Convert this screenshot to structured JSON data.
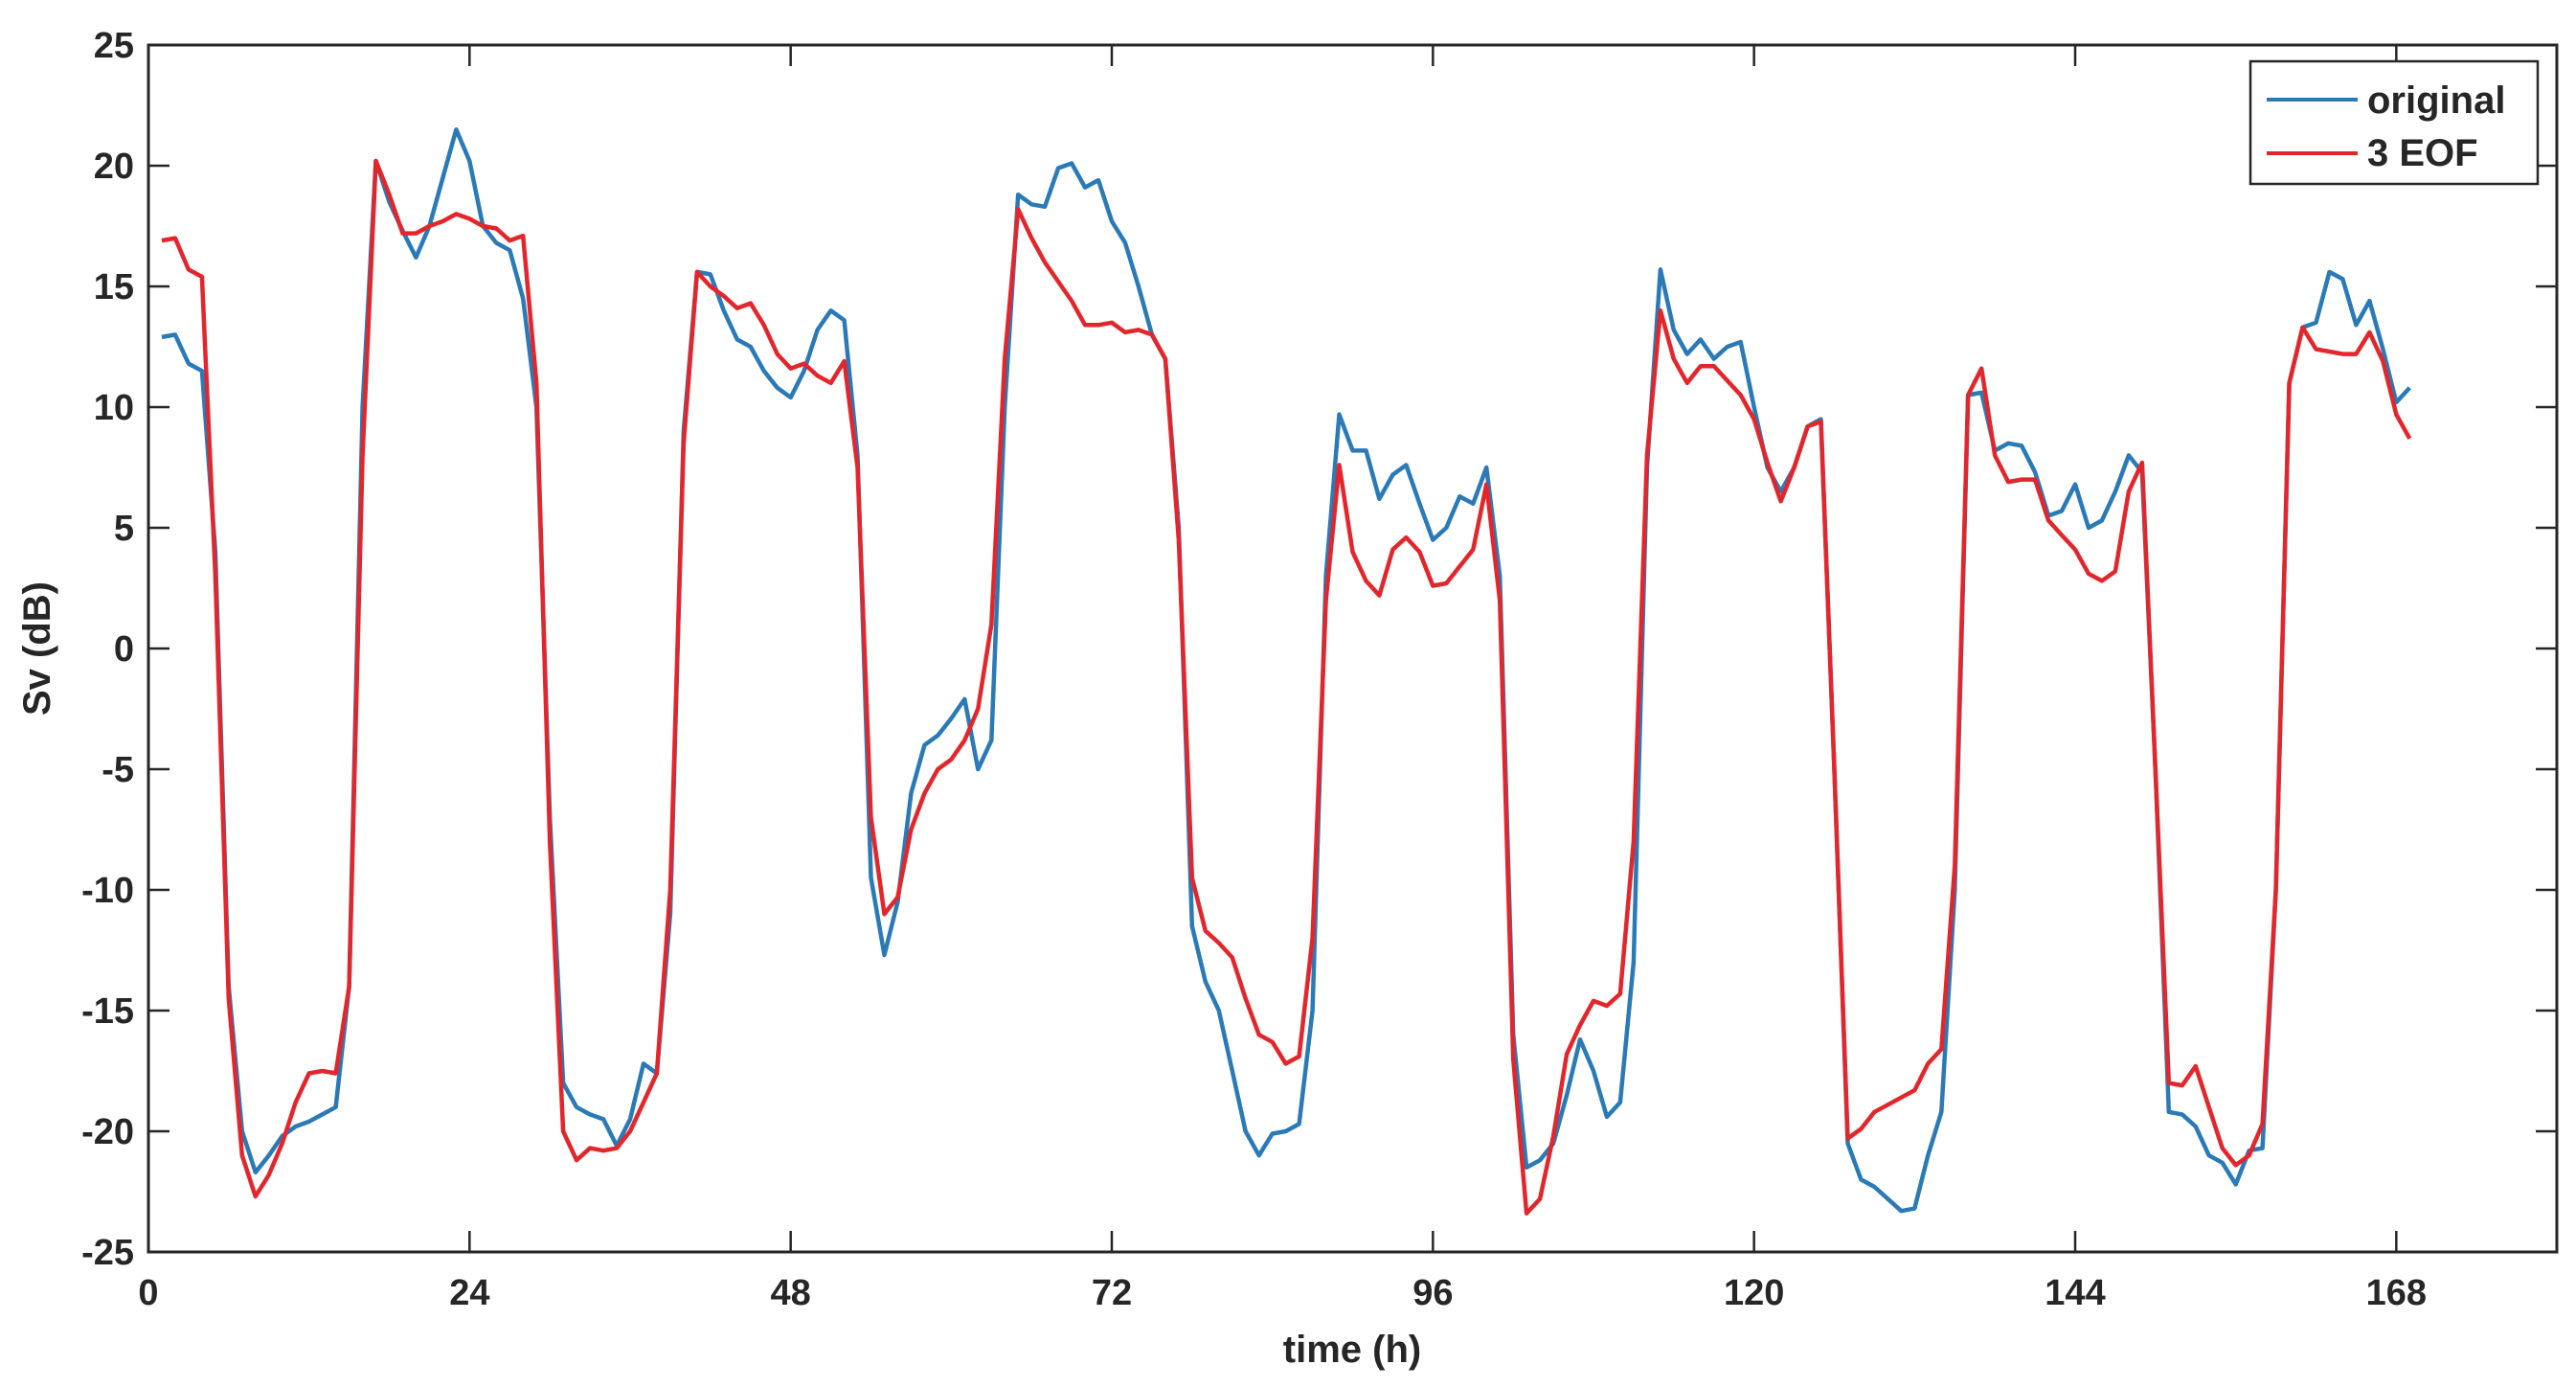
{
  "chart_data": {
    "type": "line",
    "title": "",
    "xlabel": "time (h)",
    "ylabel": "Sv (dB)",
    "xlim": [
      0,
      180
    ],
    "ylim": [
      -25,
      25
    ],
    "xticks": [
      0,
      24,
      48,
      72,
      96,
      120,
      144,
      168
    ],
    "yticks": [
      -25,
      -20,
      -15,
      -10,
      -5,
      0,
      5,
      10,
      15,
      20,
      25
    ],
    "grid": false,
    "legend_position": "top-right",
    "colors": {
      "original": "#2a7ab8",
      "eof": "#e3262c",
      "axis": "#262626"
    },
    "series": [
      {
        "name": "original",
        "x": [
          1,
          2,
          3,
          4,
          5,
          6,
          7,
          8,
          9,
          10,
          11,
          12,
          13,
          14,
          15,
          16,
          17,
          18,
          19,
          20,
          21,
          22,
          23,
          24,
          25,
          26,
          27,
          28,
          29,
          30,
          31,
          32,
          33,
          34,
          35,
          36,
          37,
          38,
          39,
          40,
          41,
          42,
          43,
          44,
          45,
          46,
          47,
          48,
          49,
          50,
          51,
          52,
          53,
          54,
          55,
          56,
          57,
          58,
          59,
          60,
          61,
          62,
          63,
          64,
          65,
          66,
          67,
          68,
          69,
          70,
          71,
          72,
          73,
          74,
          75,
          76,
          77,
          78,
          79,
          80,
          81,
          82,
          83,
          84,
          85,
          86,
          87,
          88,
          89,
          90,
          91,
          92,
          93,
          94,
          95,
          96,
          97,
          98,
          99,
          100,
          101,
          102,
          103,
          104,
          105,
          106,
          107,
          108,
          109,
          110,
          111,
          112,
          113,
          114,
          115,
          116,
          117,
          118,
          119,
          120,
          121,
          122,
          123,
          124,
          125,
          126,
          127,
          128,
          129,
          130,
          131,
          132,
          133,
          134,
          135,
          136,
          137,
          138,
          139,
          140,
          141,
          142,
          143,
          144,
          145,
          146,
          147,
          148,
          149,
          150,
          151,
          152,
          153,
          154,
          155,
          156,
          157,
          158,
          159,
          160,
          161,
          162,
          163,
          164,
          165,
          166,
          167,
          168,
          169
        ],
        "y": [
          12.9,
          13,
          11.8,
          11.5,
          4,
          -14,
          -20,
          -21.7,
          -21,
          -20.2,
          -19.8,
          -19.6,
          -19.3,
          -19,
          -14,
          10,
          20.2,
          18.5,
          17.3,
          16.2,
          17.5,
          19.5,
          21.5,
          20.2,
          17.5,
          16.8,
          16.5,
          14.5,
          10,
          -7,
          -18,
          -19,
          -19.3,
          -19.5,
          -20.6,
          -19.5,
          -17.2,
          -17.6,
          -11,
          9,
          15.6,
          15.5,
          14,
          12.8,
          12.5,
          11.5,
          10.8,
          10.4,
          11.5,
          13.2,
          14,
          13.6,
          8,
          -9.5,
          -12.7,
          -10.5,
          -6,
          -4,
          -3.6,
          -2.9,
          -2.1,
          -5,
          -3.8,
          10,
          18.8,
          18.4,
          18.3,
          19.9,
          20.1,
          19.1,
          19.4,
          17.7,
          16.8,
          15,
          13,
          12,
          5,
          -11.5,
          -13.8,
          -15,
          -17.5,
          -20,
          -21,
          -20.1,
          -20,
          -19.7,
          -15,
          3,
          9.7,
          8.2,
          8.2,
          6.2,
          7.2,
          7.6,
          6,
          4.5,
          5,
          6.3,
          6,
          7.5,
          3,
          -16,
          -21.5,
          -21.2,
          -20.5,
          -18.5,
          -16.2,
          -17.5,
          -19.4,
          -18.8,
          -13,
          7.5,
          15.7,
          13.2,
          12.2,
          12.8,
          12,
          12.5,
          12.7,
          10,
          7.5,
          6.5,
          7.5,
          9.2,
          9.5,
          -5,
          -20.5,
          -22,
          -22.3,
          -22.8,
          -23.3,
          -23.2,
          -21,
          -19.2,
          -10,
          10.5,
          10.6,
          8.2,
          8.5,
          8.4,
          7.3,
          5.5,
          5.7,
          6.8,
          5,
          5.3,
          6.5,
          8,
          7.3,
          -5,
          -19.2,
          -19.3,
          -19.8,
          -21,
          -21.3,
          -22.2,
          -20.8,
          -20.7,
          -10,
          11,
          13.3,
          13.5,
          15.6,
          15.3,
          13.4,
          14.4,
          12.4,
          10.2,
          10.8
        ]
      },
      {
        "name": "3 EOF",
        "x": [
          1,
          2,
          3,
          4,
          5,
          6,
          7,
          8,
          9,
          10,
          11,
          12,
          13,
          14,
          15,
          16,
          17,
          18,
          19,
          20,
          21,
          22,
          23,
          24,
          25,
          26,
          27,
          28,
          29,
          30,
          31,
          32,
          33,
          34,
          35,
          36,
          37,
          38,
          39,
          40,
          41,
          42,
          43,
          44,
          45,
          46,
          47,
          48,
          49,
          50,
          51,
          52,
          53,
          54,
          55,
          56,
          57,
          58,
          59,
          60,
          61,
          62,
          63,
          64,
          65,
          66,
          67,
          68,
          69,
          70,
          71,
          72,
          73,
          74,
          75,
          76,
          77,
          78,
          79,
          80,
          81,
          82,
          83,
          84,
          85,
          86,
          87,
          88,
          89,
          90,
          91,
          92,
          93,
          94,
          95,
          96,
          97,
          98,
          99,
          100,
          101,
          102,
          103,
          104,
          105,
          106,
          107,
          108,
          109,
          110,
          111,
          112,
          113,
          114,
          115,
          116,
          117,
          118,
          119,
          120,
          121,
          122,
          123,
          124,
          125,
          126,
          127,
          128,
          129,
          130,
          131,
          132,
          133,
          134,
          135,
          136,
          137,
          138,
          139,
          140,
          141,
          142,
          143,
          144,
          145,
          146,
          147,
          148,
          149,
          150,
          151,
          152,
          153,
          154,
          155,
          156,
          157,
          158,
          159,
          160,
          161,
          162,
          163,
          164,
          165,
          166,
          167,
          168,
          169
        ],
        "y": [
          16.9,
          17,
          15.7,
          15.4,
          3,
          -14.5,
          -21,
          -22.7,
          -21.8,
          -20.5,
          -18.8,
          -17.6,
          -17.5,
          -17.6,
          -14,
          8,
          20.2,
          18.8,
          17.2,
          17.2,
          17.5,
          17.7,
          18,
          17.8,
          17.5,
          17.4,
          16.9,
          17.1,
          11,
          -8,
          -20,
          -21.2,
          -20.7,
          -20.8,
          -20.7,
          -20,
          -18.8,
          -17.6,
          -10,
          8.5,
          15.6,
          15,
          14.6,
          14.1,
          14.3,
          13.4,
          12.2,
          11.6,
          11.8,
          11.3,
          11,
          11.9,
          7.5,
          -7,
          -11,
          -10.3,
          -7.5,
          -6,
          -5,
          -4.6,
          -3.8,
          -2.5,
          1,
          12,
          18.2,
          17,
          16,
          15.2,
          14.4,
          13.4,
          13.4,
          13.5,
          13.1,
          13.2,
          13,
          12,
          4.5,
          -9.5,
          -11.7,
          -12.2,
          -12.8,
          -14.5,
          -16,
          -16.3,
          -17.2,
          -16.9,
          -12,
          2,
          7.6,
          4,
          2.8,
          2.2,
          4.1,
          4.6,
          4,
          2.6,
          2.7,
          3.4,
          4.1,
          6.8,
          2,
          -17,
          -23.4,
          -22.8,
          -20.2,
          -16.8,
          -15.6,
          -14.6,
          -14.8,
          -14.3,
          -8,
          8,
          14,
          12,
          11,
          11.7,
          11.7,
          11.1,
          10.5,
          9.5,
          7.7,
          6.1,
          7.5,
          9.2,
          9.4,
          -5,
          -20.3,
          -19.9,
          -19.2,
          -18.9,
          -18.6,
          -18.3,
          -17.2,
          -16.6,
          -9,
          10.5,
          11.6,
          8,
          6.9,
          7,
          7,
          5.3,
          4.7,
          4.1,
          3.1,
          2.8,
          3.2,
          6.5,
          7.7,
          -5,
          -18,
          -18.1,
          -17.3,
          -19,
          -20.7,
          -21.4,
          -21,
          -19.7,
          -10,
          11,
          13.3,
          12.4,
          12.3,
          12.2,
          12.2,
          13.1,
          11.9,
          9.7,
          8.7
        ]
      }
    ]
  }
}
